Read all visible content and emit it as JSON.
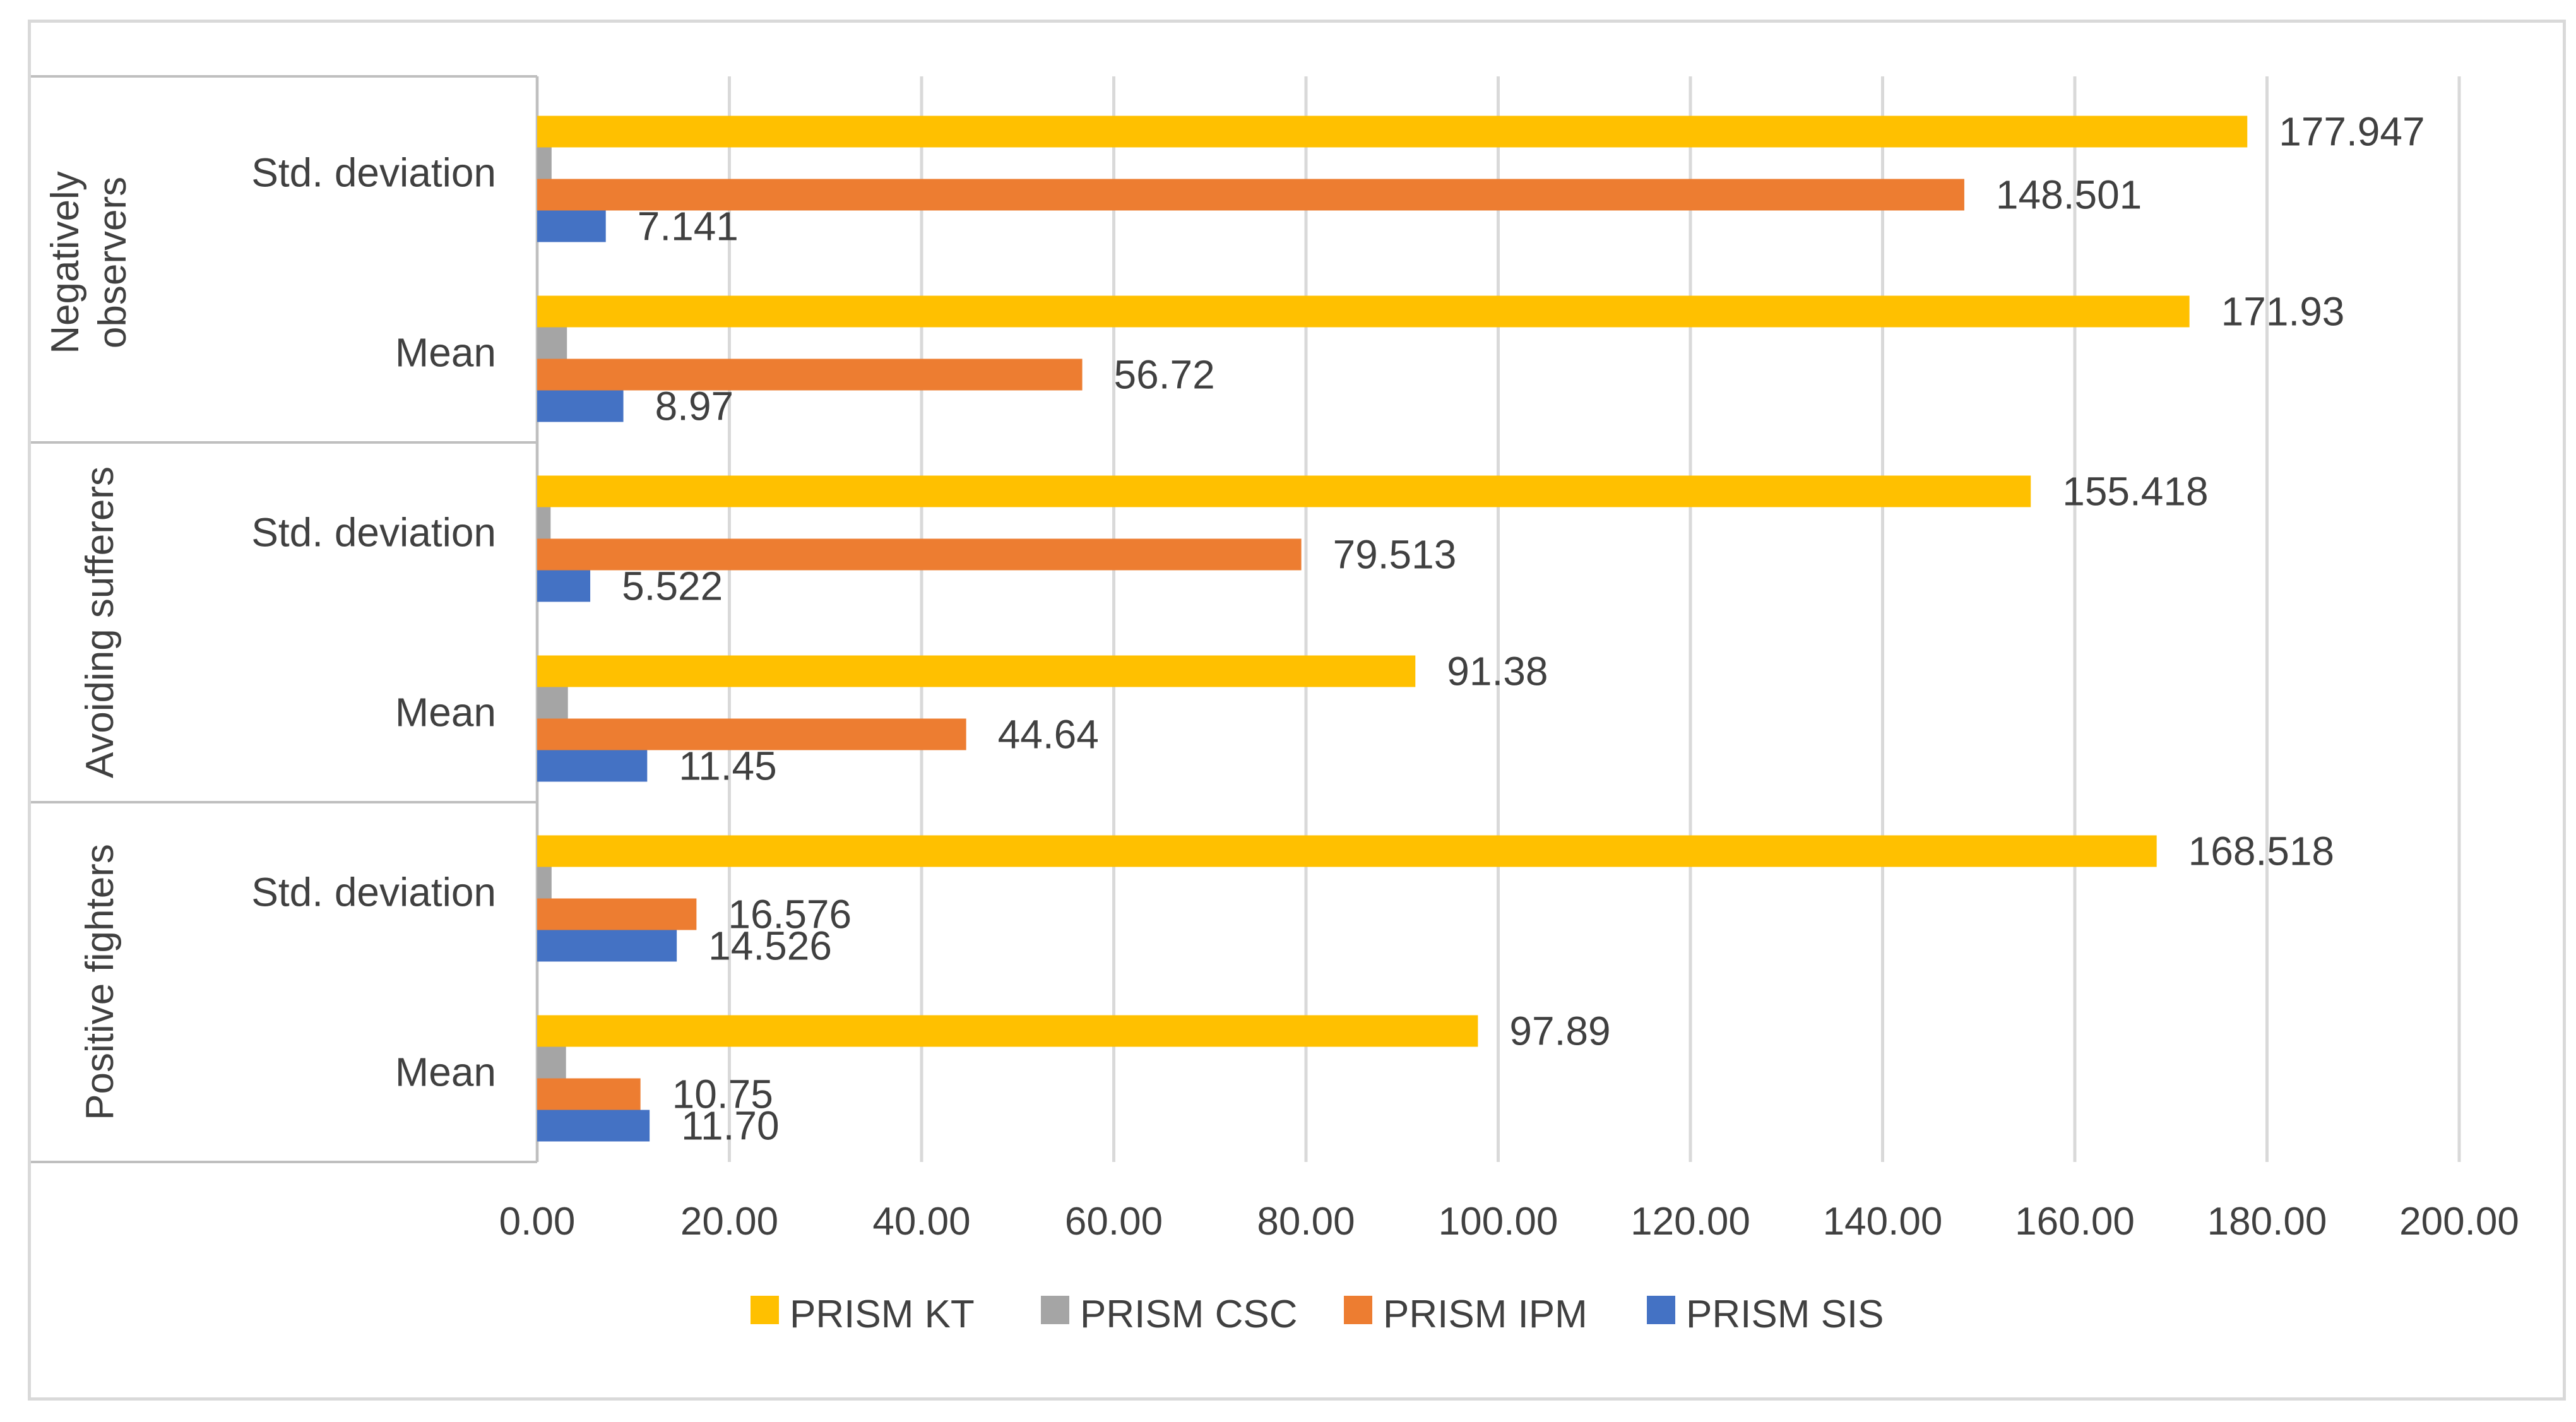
{
  "chart_data": {
    "type": "bar",
    "orientation": "horizontal",
    "title": "",
    "xlabel": "",
    "ylabel": "",
    "xlim": [
      0,
      200
    ],
    "grid": true,
    "legend_position": "bottom",
    "x_ticks": [
      "0.00",
      "20.00",
      "40.00",
      "60.00",
      "80.00",
      "100.00",
      "120.00",
      "140.00",
      "160.00",
      "180.00",
      "200.00"
    ],
    "series": [
      {
        "name": "PRISM SIS",
        "color": "#4472c4"
      },
      {
        "name": "PRISM IPM",
        "color": "#ed7d31"
      },
      {
        "name": "PRISM CSC",
        "color": "#a5a5a5"
      },
      {
        "name": "PRISM KT",
        "color": "#ffc000"
      }
    ],
    "legend_order": [
      "PRISM KT",
      "PRISM CSC",
      "PRISM IPM",
      "PRISM SIS"
    ],
    "groups": [
      {
        "name": "Negatively observers",
        "name_lines": [
          "Negatively",
          "observers"
        ],
        "categories": [
          {
            "label": "Std. deviation",
            "values": {
              "PRISM KT": 177.947,
              "PRISM CSC": 1.5,
              "PRISM IPM": 148.501,
              "PRISM SIS": 7.141
            },
            "labels": {
              "PRISM KT": "177.947",
              "PRISM IPM": "148.501",
              "PRISM SIS": "7.141"
            }
          },
          {
            "label": "Mean",
            "values": {
              "PRISM KT": 171.93,
              "PRISM CSC": 3.1,
              "PRISM IPM": 56.72,
              "PRISM SIS": 8.97
            },
            "labels": {
              "PRISM KT": "171.93",
              "PRISM IPM": "56.72",
              "PRISM SIS": "8.97"
            }
          }
        ]
      },
      {
        "name": "Avoiding sufferers",
        "name_lines": [
          "Avoiding sufferers"
        ],
        "categories": [
          {
            "label": "Std. deviation",
            "values": {
              "PRISM KT": 155.418,
              "PRISM CSC": 1.4,
              "PRISM IPM": 79.513,
              "PRISM SIS": 5.522
            },
            "labels": {
              "PRISM KT": "155.418",
              "PRISM IPM": "79.513",
              "PRISM SIS": "5.522"
            }
          },
          {
            "label": "Mean",
            "values": {
              "PRISM KT": 91.38,
              "PRISM CSC": 3.2,
              "PRISM IPM": 44.64,
              "PRISM SIS": 11.45
            },
            "labels": {
              "PRISM KT": "91.38",
              "PRISM IPM": "44.64",
              "PRISM SIS": "11.45"
            }
          }
        ]
      },
      {
        "name": "Positive fighters",
        "name_lines": [
          "Positive fighters"
        ],
        "categories": [
          {
            "label": "Std. deviation",
            "values": {
              "PRISM KT": 168.518,
              "PRISM CSC": 1.5,
              "PRISM IPM": 16.576,
              "PRISM SIS": 14.526
            },
            "labels": {
              "PRISM KT": "168.518",
              "PRISM IPM": "16.576",
              "PRISM SIS": "14.526"
            }
          },
          {
            "label": "Mean",
            "values": {
              "PRISM KT": 97.89,
              "PRISM CSC": 3.0,
              "PRISM IPM": 10.75,
              "PRISM SIS": 11.7
            },
            "labels": {
              "PRISM KT": "97.89",
              "PRISM IPM": "10.75",
              "PRISM SIS": "11.70"
            }
          }
        ]
      }
    ]
  }
}
